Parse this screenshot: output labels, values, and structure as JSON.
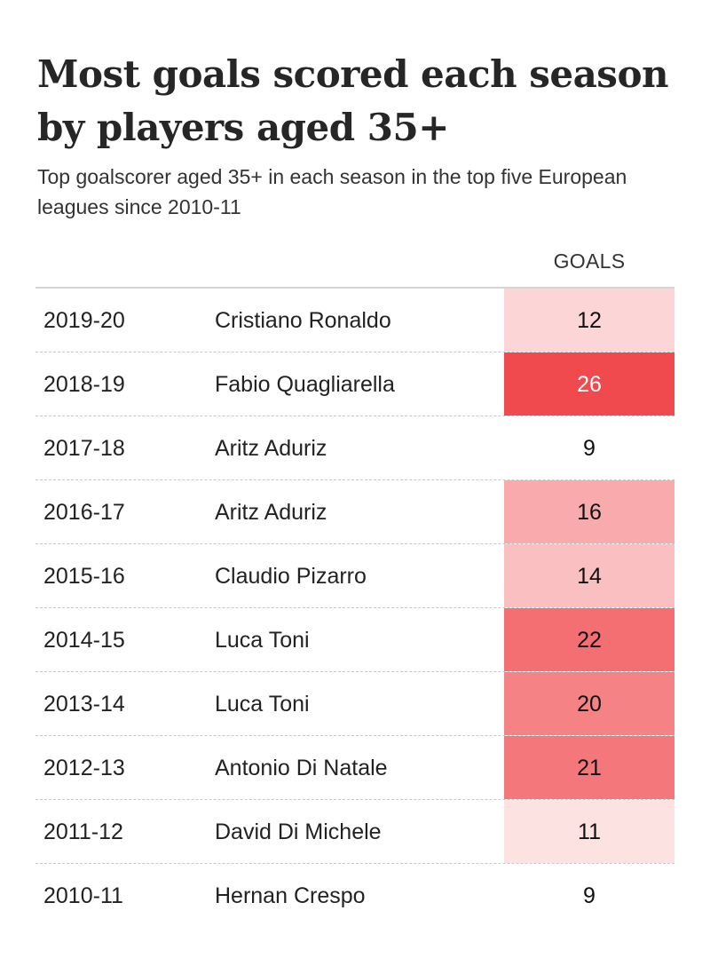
{
  "title": "Most goals scored each season by players aged 35+",
  "subtitle": "Top goalscorer aged 35+ in each season in the top five European leagues since 2010-11",
  "chart_data": {
    "type": "table",
    "title": "Most goals scored each season by players aged 35+",
    "subtitle": "Top goalscorer aged 35+ in each season in the top five European leagues since 2010-11",
    "columns": [
      "",
      "",
      "GOALS"
    ],
    "goals_header": "GOALS",
    "rows": [
      {
        "season": "2019-20",
        "player": "Cristiano Ronaldo",
        "goals": 12
      },
      {
        "season": "2018-19",
        "player": "Fabio Quagliarella",
        "goals": 26
      },
      {
        "season": "2017-18",
        "player": "Aritz Aduriz",
        "goals": 9
      },
      {
        "season": "2016-17",
        "player": "Aritz Aduriz",
        "goals": 16
      },
      {
        "season": "2015-16",
        "player": "Claudio Pizarro",
        "goals": 14
      },
      {
        "season": "2014-15",
        "player": "Luca Toni",
        "goals": 22
      },
      {
        "season": "2013-14",
        "player": "Luca Toni",
        "goals": 20
      },
      {
        "season": "2012-13",
        "player": "Antonio Di Natale",
        "goals": 21
      },
      {
        "season": "2011-12",
        "player": "David Di Michele",
        "goals": 11
      },
      {
        "season": "2010-11",
        "player": "Hernan Crespo",
        "goals": 9
      }
    ],
    "color_scale": {
      "min_value": 9,
      "max_value": 26,
      "low_color": "#ffffff",
      "high_color": "#f04a4e",
      "high_text_color": "#ffffff",
      "text_color": "#111111"
    }
  }
}
